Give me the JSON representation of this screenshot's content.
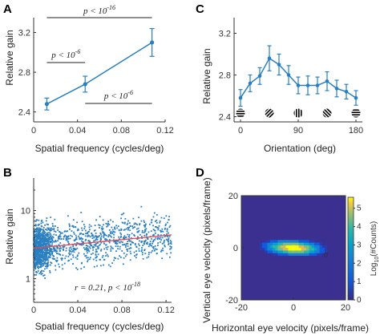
{
  "panels": {
    "A": "A",
    "B": "B",
    "C": "C",
    "D": "D"
  },
  "colors": {
    "series": "#2a7fc0",
    "fit_line": "#e8474e",
    "scatter": "#2a7fc0",
    "heat_background": "#3b2f8f"
  },
  "chart_data": [
    {
      "id": "A",
      "type": "line",
      "xlabel": "Spatial frequency (cycles/deg)",
      "ylabel": "Relative gain",
      "xlim": [
        0,
        0.12
      ],
      "ylim": [
        2.3,
        3.35
      ],
      "xticks": [
        "0",
        "0.04",
        "0.08",
        "0.12"
      ],
      "yticks": [
        "2.4",
        "2.8",
        "3.2"
      ],
      "x": [
        0.012,
        0.047,
        0.108
      ],
      "values": [
        2.48,
        2.68,
        3.1
      ],
      "errors": [
        0.06,
        0.08,
        0.14
      ],
      "annotations": [
        "p < 10^-16",
        "p < 10^-6",
        "p < 10^-6"
      ]
    },
    {
      "id": "B",
      "type": "scatter",
      "xlabel": "Spatial frequency (cycles/deg)",
      "ylabel": "Relative gain",
      "scale_y": "log",
      "xlim": [
        0,
        0.125
      ],
      "ylim": [
        0.45,
        30
      ],
      "xticks": [
        "0",
        "0.04",
        "0.08",
        "0.12"
      ],
      "yticks": [
        "1",
        "10"
      ],
      "fit": {
        "x": [
          0,
          0.125
        ],
        "y": [
          2.8,
          4.4
        ]
      },
      "stats_text": "r = 0.21,   p < 10^-18"
    },
    {
      "id": "C",
      "type": "line",
      "xlabel": "Orientation (deg)",
      "ylabel": "Relative gain",
      "xlim": [
        -10,
        190
      ],
      "ylim": [
        2.35,
        3.35
      ],
      "xticks": [
        "0",
        "90",
        "180"
      ],
      "yticks": [
        "2.4",
        "2.8",
        "3.2"
      ],
      "x": [
        0,
        15,
        30,
        45,
        60,
        75,
        90,
        105,
        120,
        135,
        150,
        165,
        180
      ],
      "values": [
        2.58,
        2.72,
        2.79,
        2.96,
        2.9,
        2.8,
        2.7,
        2.7,
        2.7,
        2.74,
        2.67,
        2.64,
        2.58
      ],
      "errors": [
        0.08,
        0.08,
        0.08,
        0.12,
        0.1,
        0.09,
        0.08,
        0.09,
        0.08,
        0.09,
        0.08,
        0.07,
        0.07
      ]
    },
    {
      "id": "D",
      "type": "heatmap",
      "xlabel": "Horizontal eye velocity (pixels/frame)",
      "ylabel": "Vertical eye velocity (pixels/frame)",
      "xlim": [
        -20,
        20
      ],
      "ylim": [
        -20,
        20
      ],
      "xticks": [
        "-20",
        "0",
        "20"
      ],
      "yticks": [
        "-20",
        "0",
        "20"
      ],
      "colorbar_label": "Log10(#Counts)",
      "colorbar_ticks": [
        "0",
        "1",
        "2",
        "3",
        "4",
        "5"
      ],
      "colorbar_range": [
        0,
        5.6
      ],
      "marker": "σ"
    }
  ]
}
